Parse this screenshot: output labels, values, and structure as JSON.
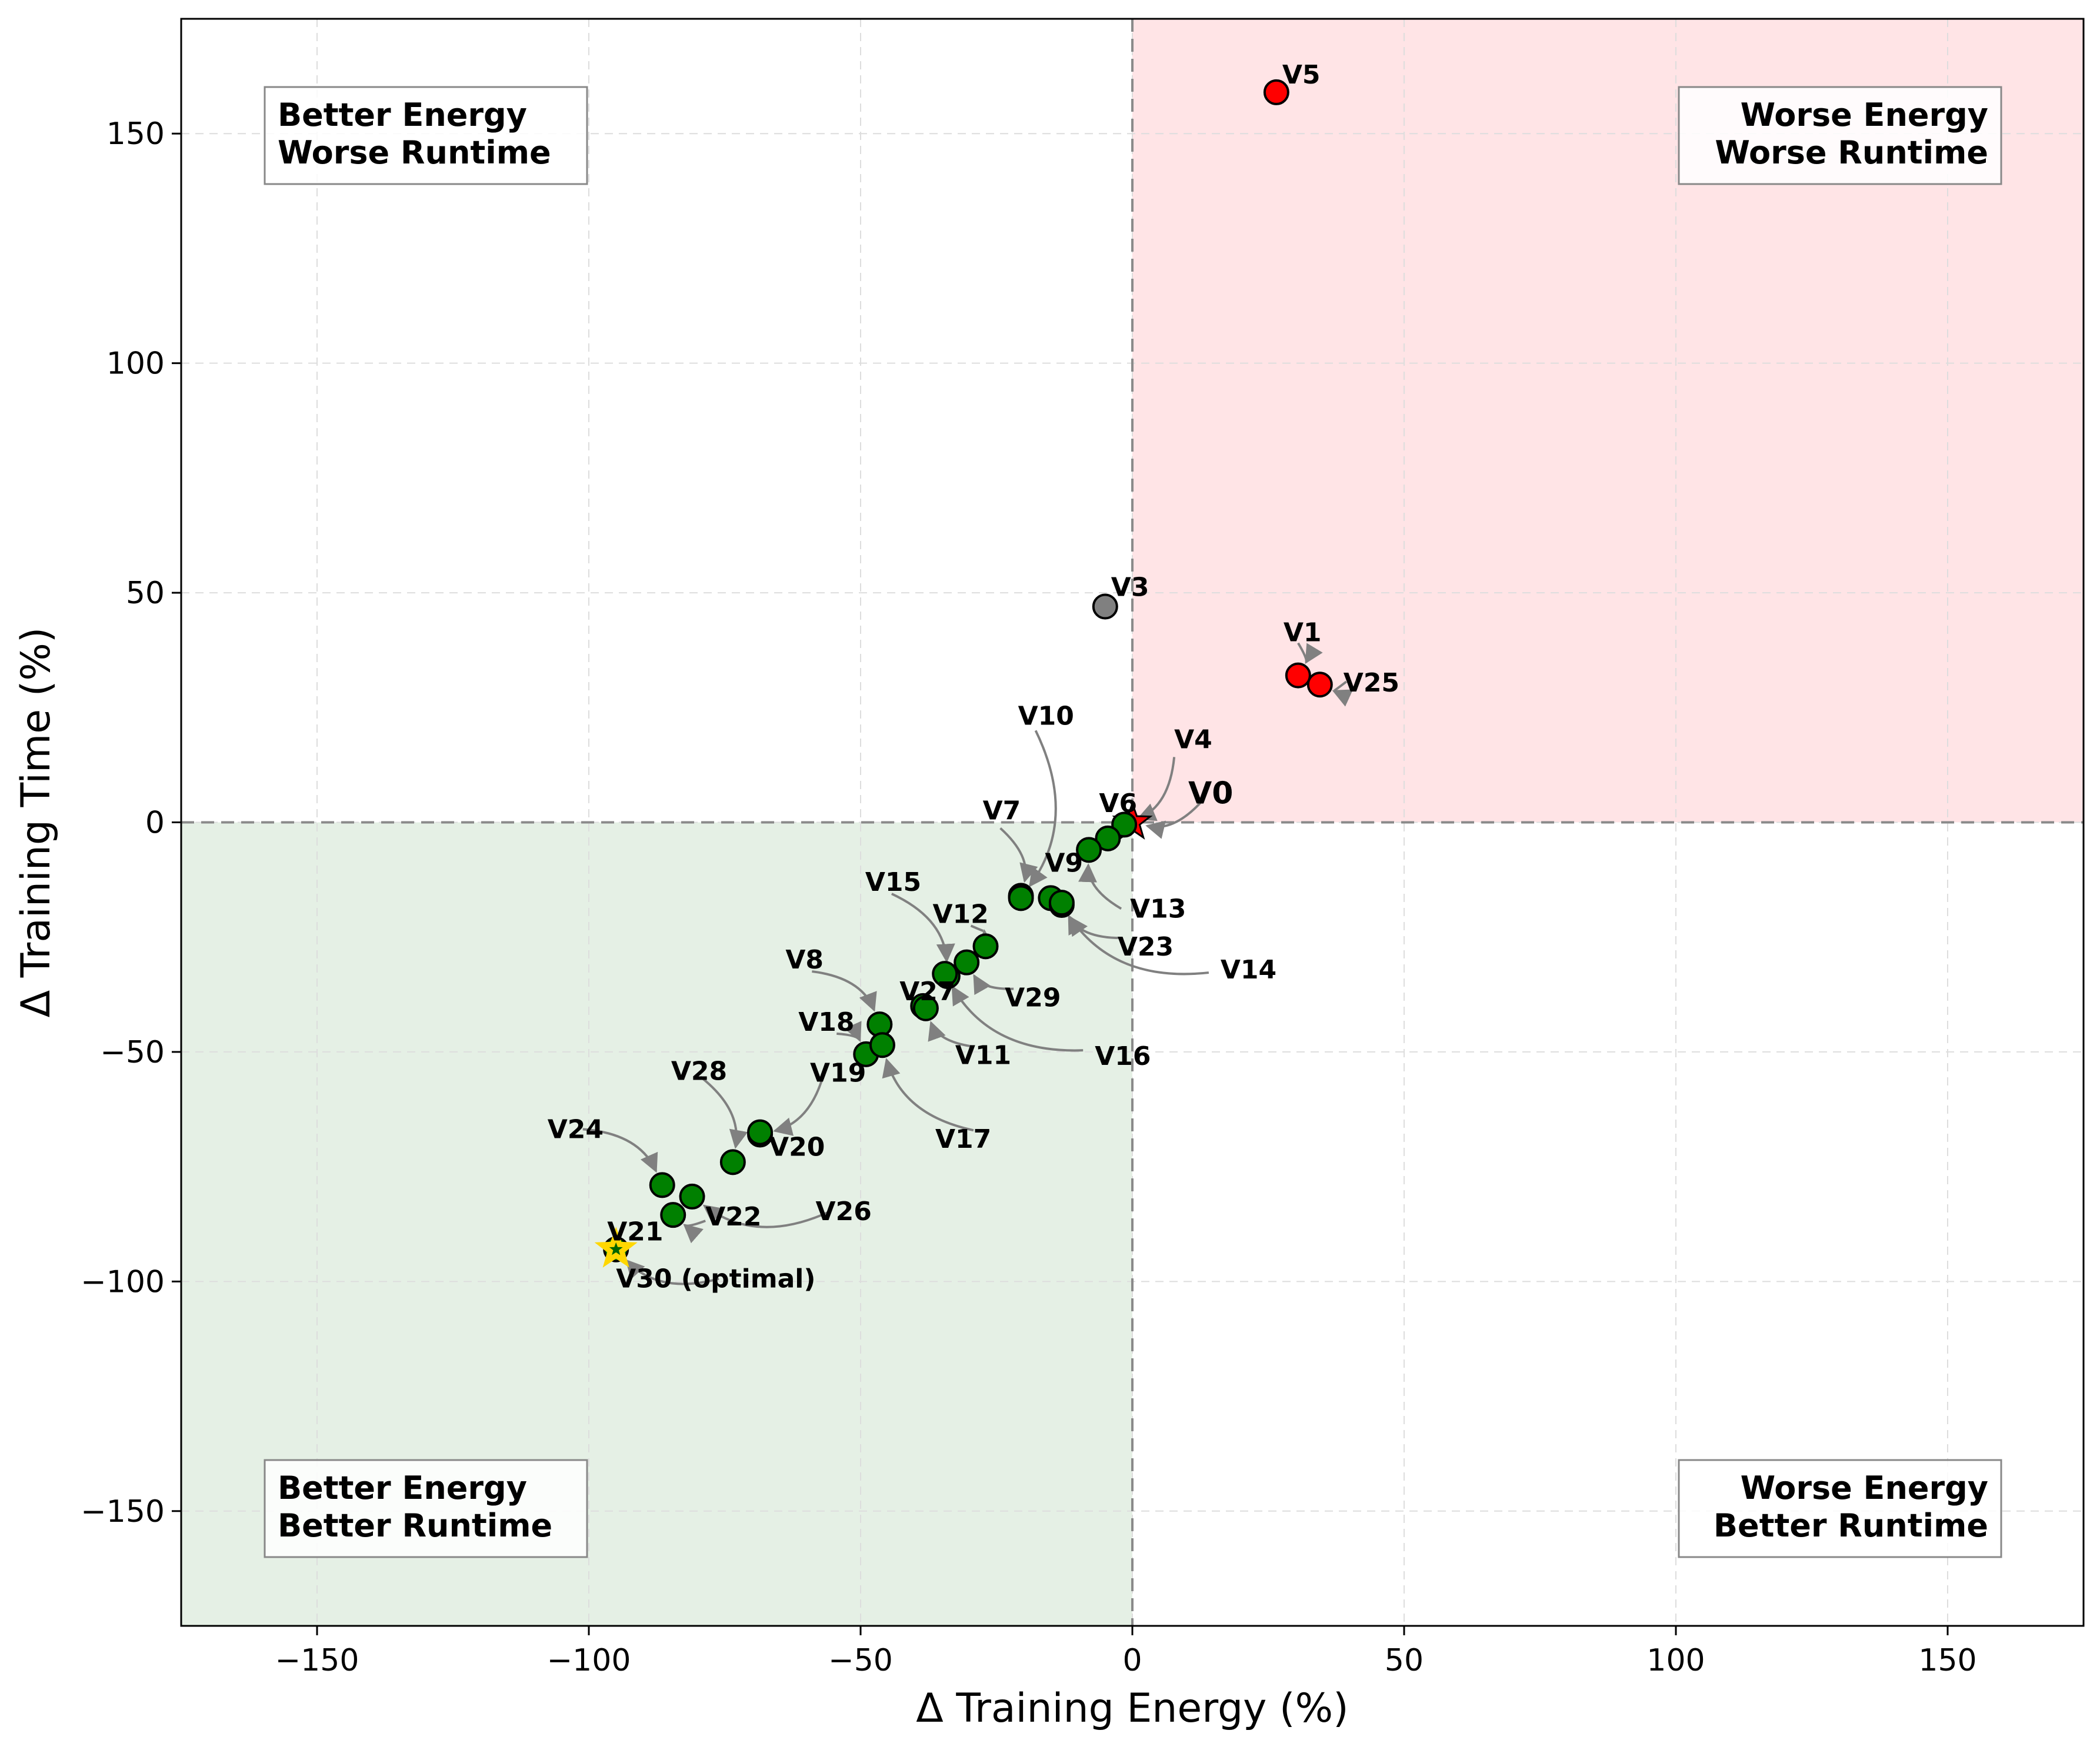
{
  "chart_data": {
    "type": "scatter",
    "title": "",
    "xlabel": "Δ Training Energy (%)",
    "ylabel": "Δ Training Time (%)",
    "xlim": [
      -175,
      175
    ],
    "ylim": [
      -175,
      175
    ],
    "x_ticks": [
      -150,
      -100,
      -50,
      0,
      50,
      100,
      150
    ],
    "y_ticks": [
      -150,
      -100,
      -50,
      0,
      50,
      100,
      150
    ],
    "x_tick_labels": [
      "−150",
      "−100",
      "−50",
      "0",
      "50",
      "100",
      "150"
    ],
    "y_tick_labels": [
      "−150",
      "−100",
      "−50",
      "0",
      "50",
      "100",
      "150"
    ],
    "grid": true,
    "quadrant_labels": {
      "top_left": [
        "Better Energy",
        "Worse Runtime"
      ],
      "top_right": [
        "Worse Energy",
        "Worse Runtime"
      ],
      "bottom_left": [
        "Better Energy",
        "Better Runtime"
      ],
      "bottom_right": [
        "Worse Energy",
        "Better Runtime"
      ]
    },
    "colors": {
      "worse_quadrant": "#ffe4e6",
      "better_quadrant": "#e5f0e5",
      "good": "#008000",
      "bad": "#ff0000",
      "neutral": "#808080",
      "optimal": "#ffd700",
      "arrow": "#808080"
    },
    "points": [
      {
        "label": "V0",
        "x": 0,
        "y": 0,
        "category": "baseline",
        "marker": "star"
      },
      {
        "label": "V1",
        "x": 30.5,
        "y": 32,
        "category": "bad"
      },
      {
        "label": "V25",
        "x": 34.5,
        "y": 30,
        "category": "bad"
      },
      {
        "label": "V5",
        "x": 26.5,
        "y": 159,
        "category": "bad"
      },
      {
        "label": "V3",
        "x": -5,
        "y": 47,
        "category": "neutral"
      },
      {
        "label": "V4",
        "x": -1.5,
        "y": -0.5,
        "category": "good"
      },
      {
        "label": "V6",
        "x": -4.5,
        "y": -3.5,
        "category": "good"
      },
      {
        "label": "V13",
        "x": -8,
        "y": -6,
        "category": "good"
      },
      {
        "label": "V9",
        "x": -15,
        "y": -16.5,
        "category": "good"
      },
      {
        "label": "V14",
        "x": -13,
        "y": -18,
        "category": "good"
      },
      {
        "label": "V23",
        "x": -13,
        "y": -17.5,
        "category": "good"
      },
      {
        "label": "V7",
        "x": -20.5,
        "y": -16,
        "category": "good"
      },
      {
        "label": "V10",
        "x": -20.5,
        "y": -16.5,
        "category": "good"
      },
      {
        "label": "V12",
        "x": -27,
        "y": -27,
        "category": "good"
      },
      {
        "label": "V29",
        "x": -30.5,
        "y": -30.5,
        "category": "good"
      },
      {
        "label": "V15",
        "x": -34,
        "y": -33.5,
        "category": "good"
      },
      {
        "label": "V16",
        "x": -34.5,
        "y": -33,
        "category": "good"
      },
      {
        "label": "V27",
        "x": -38.5,
        "y": -40,
        "category": "good"
      },
      {
        "label": "V11",
        "x": -38,
        "y": -40.5,
        "category": "good"
      },
      {
        "label": "V8",
        "x": -46.5,
        "y": -44,
        "category": "good"
      },
      {
        "label": "V18",
        "x": -49,
        "y": -50.5,
        "category": "good"
      },
      {
        "label": "V17",
        "x": -46,
        "y": -48.5,
        "category": "good"
      },
      {
        "label": "V19",
        "x": -68.5,
        "y": -68,
        "category": "good"
      },
      {
        "label": "V20",
        "x": -68.5,
        "y": -67.5,
        "category": "good"
      },
      {
        "label": "V28",
        "x": -73.5,
        "y": -74,
        "category": "good"
      },
      {
        "label": "V24",
        "x": -86.5,
        "y": -79,
        "category": "good"
      },
      {
        "label": "V26",
        "x": -81,
        "y": -81.5,
        "category": "good"
      },
      {
        "label": "V22",
        "x": -84.5,
        "y": -85.5,
        "category": "good"
      },
      {
        "label": "V21",
        "x": -95,
        "y": -93,
        "category": "good"
      },
      {
        "label": "V30 (optimal)",
        "x": -95,
        "y": -93,
        "category": "optimal",
        "marker": "star"
      }
    ]
  }
}
